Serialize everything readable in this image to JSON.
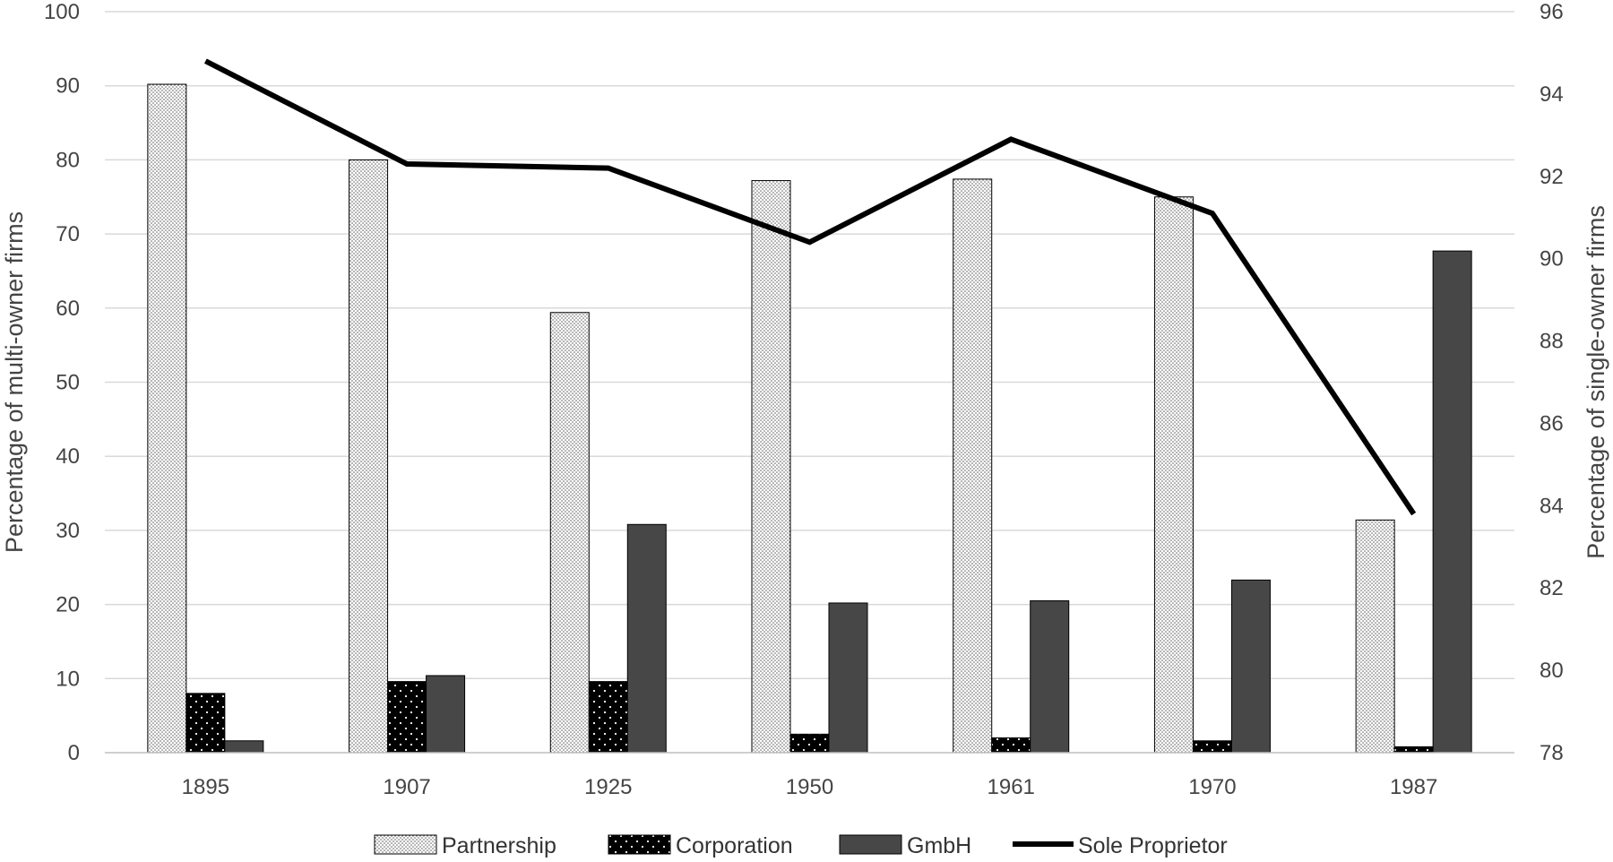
{
  "chart_data": {
    "type": "bar",
    "categories": [
      "1895",
      "1907",
      "1925",
      "1950",
      "1961",
      "1970",
      "1987"
    ],
    "series": [
      {
        "name": "Partnership",
        "type": "bar",
        "axis": "left",
        "pattern": "fine-dots",
        "values": [
          90.2,
          80.0,
          59.4,
          77.2,
          77.4,
          75.0,
          31.4
        ]
      },
      {
        "name": "Corporation",
        "type": "bar",
        "axis": "left",
        "pattern": "black-sparse-dots",
        "values": [
          8.0,
          9.6,
          9.6,
          2.5,
          2.0,
          1.6,
          0.8
        ]
      },
      {
        "name": "GmbH",
        "type": "bar",
        "axis": "left",
        "pattern": "solid-dark-gray",
        "values": [
          1.6,
          10.4,
          30.8,
          20.2,
          20.5,
          23.3,
          67.7
        ]
      },
      {
        "name": "Sole Proprietor",
        "type": "line",
        "axis": "right",
        "values": [
          94.8,
          92.3,
          92.2,
          90.4,
          92.9,
          91.1,
          83.8
        ]
      }
    ],
    "ylabel": "Percentage of multi-owner firms",
    "ylabel_right": "Percentage of single-owner firms",
    "ylim": [
      0,
      100
    ],
    "ylim_right": [
      78,
      96
    ],
    "yticks": [
      "0",
      "10",
      "20",
      "30",
      "40",
      "50",
      "60",
      "70",
      "80",
      "90",
      "100"
    ],
    "yticks_right": [
      "78",
      "80",
      "82",
      "84",
      "86",
      "88",
      "90",
      "92",
      "94",
      "96"
    ],
    "grid": true,
    "legend_position": "bottom",
    "colors": {
      "gmbh": "#474747",
      "line": "#000000",
      "grid": "#d9d9d9",
      "text": "#444444"
    }
  }
}
